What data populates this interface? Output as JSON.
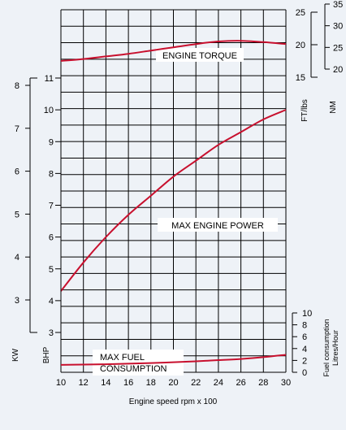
{
  "chart_data": {
    "type": "line",
    "xlabel": "Engine speed  rpm x 100",
    "x_ticks": [
      10,
      12,
      14,
      16,
      18,
      20,
      22,
      24,
      26,
      28,
      30
    ],
    "xlim": [
      10,
      30
    ],
    "left_axes": [
      {
        "label": "KW",
        "ticks": [
          3,
          4,
          5,
          6,
          7,
          8
        ],
        "ylim": [
          1.85,
          8.7
        ]
      },
      {
        "label": "BHP",
        "ticks": [
          3,
          4,
          5,
          6,
          7,
          8,
          9,
          10,
          11
        ],
        "ylim": [
          2.55,
          11.5
        ]
      }
    ],
    "right_axes": [
      {
        "label": "FT/lbs",
        "ticks": [
          15,
          20,
          25
        ],
        "ylim": [
          15,
          25
        ]
      },
      {
        "label": "NM",
        "ticks": [
          20,
          25,
          30,
          35
        ],
        "ylim": [
          20,
          35
        ]
      },
      {
        "label_lines": [
          "Fuel consumption",
          "Litres/Hour"
        ],
        "ticks": [
          0,
          2,
          4,
          6,
          8,
          10
        ],
        "ylim": [
          0,
          10
        ]
      }
    ],
    "annotations": [
      "ENGINE TORQUE",
      "MAX ENGINE POWER",
      "MAX FUEL",
      "CONSUMPTION"
    ],
    "series": [
      {
        "label": "ENGINE TORQUE",
        "units": "FT/lbs",
        "color": "#c8102e",
        "x": [
          10,
          12,
          14,
          16,
          18,
          20,
          22,
          24,
          26,
          28,
          30
        ],
        "y": [
          17.5,
          17.8,
          18.2,
          18.6,
          19.1,
          19.6,
          20.1,
          20.5,
          20.6,
          20.4,
          20.1
        ]
      },
      {
        "label": "MAX ENGINE POWER",
        "units": "BHP",
        "color": "#c8102e",
        "x": [
          10,
          12,
          14,
          16,
          18,
          20,
          22,
          24,
          26,
          28,
          30
        ],
        "y": [
          4.3,
          5.2,
          6.0,
          6.7,
          7.3,
          7.9,
          8.4,
          8.9,
          9.3,
          9.7,
          10.0
        ]
      },
      {
        "label": "MAX FUEL CONSUMPTION",
        "units": "Litres/Hour",
        "color": "#c8102e",
        "x": [
          10,
          12,
          14,
          16,
          18,
          20,
          22,
          24,
          26,
          28,
          30
        ],
        "y": [
          1.25,
          1.3,
          1.35,
          1.45,
          1.55,
          1.7,
          1.85,
          2.05,
          2.25,
          2.55,
          2.95
        ]
      }
    ],
    "grid": true
  }
}
